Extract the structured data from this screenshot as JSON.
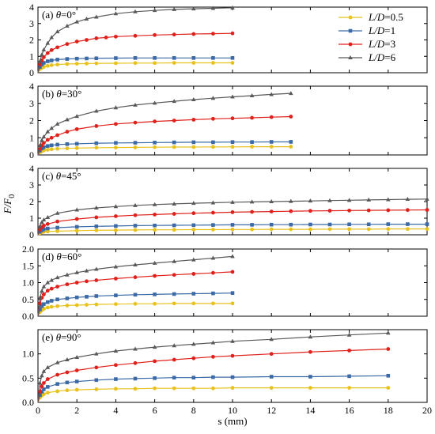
{
  "figure": {
    "ylabel": "F/F0",
    "ylabel_main": "F/F",
    "ylabel_sub": "0",
    "xlabel": "s (mm)"
  },
  "legend": {
    "placement": "top-right",
    "entries": [
      {
        "var": "L/D",
        "value": "=0.5",
        "color": "#e8c21c",
        "marker": "circle"
      },
      {
        "var": "L/D",
        "value": "=1",
        "color": "#3b6aa6",
        "marker": "square"
      },
      {
        "var": "L/D",
        "value": "=3",
        "color": "#e0201b",
        "marker": "circle"
      },
      {
        "var": "L/D",
        "value": "=6",
        "color": "#595959",
        "marker": "triangle"
      }
    ]
  },
  "chart_data": [
    {
      "type": "line",
      "panel_label": "(a)",
      "theta_symbol": "θ",
      "theta_value": "=0°",
      "xlim": [
        0,
        20
      ],
      "ylim": [
        0,
        4
      ],
      "yticks": [
        "0",
        "1",
        "2",
        "3",
        "4"
      ],
      "xticks": [],
      "series": [
        {
          "name": "L/D=0.5",
          "color": "#e8c21c",
          "marker": "circle",
          "x": [
            0,
            0.1,
            0.2,
            0.3,
            0.5,
            0.7,
            1,
            1.5,
            2,
            2.5,
            3,
            4,
            5,
            6,
            7,
            8,
            9,
            10
          ],
          "y": [
            0,
            0.22,
            0.3,
            0.36,
            0.42,
            0.46,
            0.5,
            0.53,
            0.55,
            0.56,
            0.57,
            0.58,
            0.59,
            0.59,
            0.6,
            0.6,
            0.6,
            0.6
          ]
        },
        {
          "name": "L/D=1",
          "color": "#3b6aa6",
          "marker": "square",
          "x": [
            0,
            0.1,
            0.2,
            0.3,
            0.5,
            0.7,
            1,
            1.5,
            2,
            2.5,
            3,
            4,
            5,
            6,
            7,
            8,
            9,
            10
          ],
          "y": [
            0,
            0.35,
            0.5,
            0.6,
            0.7,
            0.75,
            0.8,
            0.84,
            0.86,
            0.87,
            0.88,
            0.89,
            0.9,
            0.9,
            0.9,
            0.9,
            0.9,
            0.9
          ]
        },
        {
          "name": "L/D=3",
          "color": "#e0201b",
          "marker": "circle",
          "x": [
            0,
            0.1,
            0.2,
            0.3,
            0.5,
            0.7,
            1,
            1.5,
            2,
            2.5,
            3,
            3.5,
            4,
            5,
            6,
            7,
            8,
            9,
            10
          ],
          "y": [
            0,
            0.5,
            0.75,
            0.95,
            1.2,
            1.38,
            1.55,
            1.75,
            1.9,
            2.0,
            2.1,
            2.15,
            2.2,
            2.25,
            2.3,
            2.33,
            2.36,
            2.38,
            2.4
          ]
        },
        {
          "name": "L/D=6",
          "color": "#595959",
          "marker": "triangle",
          "x": [
            0,
            0.1,
            0.2,
            0.3,
            0.5,
            0.7,
            1,
            1.5,
            2,
            2.5,
            3,
            4,
            5,
            6,
            7,
            8,
            9,
            10
          ],
          "y": [
            0,
            0.7,
            1.1,
            1.4,
            1.8,
            2.15,
            2.5,
            2.85,
            3.1,
            3.28,
            3.4,
            3.6,
            3.72,
            3.8,
            3.86,
            3.9,
            3.93,
            3.96
          ]
        }
      ]
    },
    {
      "type": "line",
      "panel_label": "(b)",
      "theta_symbol": "θ",
      "theta_value": "=30°",
      "xlim": [
        0,
        20
      ],
      "ylim": [
        0,
        4
      ],
      "yticks": [
        "0",
        "1",
        "2",
        "3",
        "4"
      ],
      "xticks": [],
      "series": [
        {
          "name": "L/D=0.5",
          "color": "#e8c21c",
          "marker": "circle",
          "x": [
            0,
            0.1,
            0.2,
            0.3,
            0.5,
            0.7,
            1,
            1.5,
            2,
            3,
            4,
            5,
            6,
            7,
            8,
            9,
            10,
            11,
            12,
            13
          ],
          "y": [
            0,
            0.15,
            0.22,
            0.26,
            0.3,
            0.33,
            0.36,
            0.38,
            0.4,
            0.42,
            0.43,
            0.44,
            0.45,
            0.46,
            0.46,
            0.47,
            0.47,
            0.48,
            0.48,
            0.48
          ]
        },
        {
          "name": "L/D=1",
          "color": "#3b6aa6",
          "marker": "square",
          "x": [
            0,
            0.1,
            0.2,
            0.3,
            0.5,
            0.7,
            1,
            1.5,
            2,
            3,
            4,
            5,
            6,
            7,
            8,
            9,
            10,
            11,
            12,
            13
          ],
          "y": [
            0,
            0.25,
            0.38,
            0.45,
            0.52,
            0.56,
            0.6,
            0.63,
            0.65,
            0.68,
            0.7,
            0.71,
            0.72,
            0.73,
            0.74,
            0.74,
            0.75,
            0.75,
            0.76,
            0.76
          ]
        },
        {
          "name": "L/D=3",
          "color": "#e0201b",
          "marker": "circle",
          "x": [
            0,
            0.1,
            0.2,
            0.3,
            0.5,
            0.7,
            1,
            1.5,
            2,
            3,
            4,
            5,
            6,
            7,
            8,
            9,
            10,
            11,
            12,
            13
          ],
          "y": [
            0,
            0.35,
            0.55,
            0.7,
            0.88,
            1.0,
            1.15,
            1.35,
            1.5,
            1.68,
            1.8,
            1.88,
            1.95,
            2.0,
            2.05,
            2.1,
            2.13,
            2.16,
            2.2,
            2.23
          ]
        },
        {
          "name": "L/D=6",
          "color": "#595959",
          "marker": "triangle",
          "x": [
            0,
            0.1,
            0.2,
            0.3,
            0.5,
            0.7,
            1,
            1.5,
            2,
            3,
            4,
            5,
            6,
            7,
            8,
            9,
            10,
            11,
            12,
            13
          ],
          "y": [
            0,
            0.55,
            0.85,
            1.05,
            1.35,
            1.55,
            1.8,
            2.05,
            2.25,
            2.55,
            2.75,
            2.9,
            3.02,
            3.12,
            3.22,
            3.3,
            3.38,
            3.45,
            3.52,
            3.58
          ]
        }
      ]
    },
    {
      "type": "line",
      "panel_label": "(c)",
      "theta_symbol": "θ",
      "theta_value": "=45°",
      "xlim": [
        0,
        20
      ],
      "ylim": [
        0,
        4
      ],
      "yticks": [
        "0",
        "1",
        "2",
        "3",
        "4"
      ],
      "xticks": [],
      "series": [
        {
          "name": "L/D=0.5",
          "color": "#e8c21c",
          "marker": "circle",
          "x": [
            0,
            0.1,
            0.2,
            0.3,
            0.5,
            1,
            2,
            3,
            4,
            5,
            6,
            7,
            8,
            9,
            10,
            11,
            12,
            13,
            14,
            15,
            16,
            17,
            18,
            19,
            20
          ],
          "y": [
            0,
            0.1,
            0.15,
            0.18,
            0.2,
            0.22,
            0.25,
            0.27,
            0.28,
            0.29,
            0.3,
            0.3,
            0.31,
            0.31,
            0.32,
            0.32,
            0.33,
            0.33,
            0.33,
            0.34,
            0.34,
            0.34,
            0.35,
            0.35,
            0.35
          ]
        },
        {
          "name": "L/D=1",
          "color": "#3b6aa6",
          "marker": "square",
          "x": [
            0,
            0.1,
            0.2,
            0.3,
            0.5,
            1,
            2,
            3,
            4,
            5,
            6,
            7,
            8,
            9,
            10,
            11,
            12,
            13,
            14,
            15,
            16,
            17,
            18,
            19,
            20
          ],
          "y": [
            0,
            0.18,
            0.27,
            0.33,
            0.38,
            0.43,
            0.48,
            0.51,
            0.53,
            0.55,
            0.56,
            0.57,
            0.58,
            0.59,
            0.6,
            0.6,
            0.61,
            0.61,
            0.62,
            0.62,
            0.63,
            0.63,
            0.64,
            0.64,
            0.64
          ]
        },
        {
          "name": "L/D=3",
          "color": "#e0201b",
          "marker": "circle",
          "x": [
            0,
            0.1,
            0.2,
            0.3,
            0.5,
            1,
            2,
            3,
            4,
            5,
            6,
            7,
            8,
            9,
            10,
            11,
            12,
            13,
            14,
            15,
            16,
            17,
            18,
            19,
            20
          ],
          "y": [
            0,
            0.3,
            0.45,
            0.55,
            0.65,
            0.8,
            0.95,
            1.05,
            1.12,
            1.18,
            1.22,
            1.26,
            1.3,
            1.33,
            1.36,
            1.38,
            1.4,
            1.42,
            1.44,
            1.45,
            1.46,
            1.47,
            1.48,
            1.49,
            1.5
          ]
        },
        {
          "name": "L/D=6",
          "color": "#595959",
          "marker": "triangle",
          "x": [
            0,
            0.1,
            0.2,
            0.3,
            0.5,
            1,
            2,
            3,
            4,
            5,
            6,
            7,
            8,
            9,
            10,
            11,
            12,
            13,
            14,
            15,
            16,
            17,
            18,
            19,
            20
          ],
          "y": [
            0,
            0.5,
            0.75,
            0.9,
            1.05,
            1.3,
            1.5,
            1.62,
            1.7,
            1.77,
            1.82,
            1.86,
            1.9,
            1.93,
            1.96,
            1.98,
            2.0,
            2.02,
            2.04,
            2.06,
            2.08,
            2.1,
            2.12,
            2.14,
            2.15
          ]
        }
      ]
    },
    {
      "type": "line",
      "panel_label": "(d)",
      "theta_symbol": "θ",
      "theta_value": "=60°",
      "xlim": [
        0,
        20
      ],
      "ylim": [
        0,
        2.0
      ],
      "yticks": [
        "0.0",
        "0.5",
        "1.0",
        "1.5",
        "2.0"
      ],
      "xticks": [],
      "series": [
        {
          "name": "L/D=0.5",
          "color": "#e8c21c",
          "marker": "circle",
          "x": [
            0,
            0.1,
            0.2,
            0.3,
            0.5,
            0.7,
            1,
            1.5,
            2,
            2.5,
            3,
            4,
            5,
            6,
            7,
            8,
            9,
            10
          ],
          "y": [
            0,
            0.12,
            0.18,
            0.22,
            0.26,
            0.28,
            0.3,
            0.32,
            0.33,
            0.34,
            0.35,
            0.36,
            0.37,
            0.37,
            0.38,
            0.38,
            0.38,
            0.38
          ]
        },
        {
          "name": "L/D=1",
          "color": "#3b6aa6",
          "marker": "square",
          "x": [
            0,
            0.1,
            0.2,
            0.3,
            0.5,
            0.7,
            1,
            1.5,
            2,
            2.5,
            3,
            4,
            5,
            6,
            7,
            8,
            9,
            10
          ],
          "y": [
            0,
            0.2,
            0.3,
            0.36,
            0.42,
            0.46,
            0.5,
            0.53,
            0.56,
            0.58,
            0.6,
            0.62,
            0.64,
            0.65,
            0.66,
            0.67,
            0.68,
            0.69
          ]
        },
        {
          "name": "L/D=3",
          "color": "#e0201b",
          "marker": "circle",
          "x": [
            0,
            0.1,
            0.2,
            0.3,
            0.5,
            0.7,
            1,
            1.5,
            2,
            2.5,
            3,
            4,
            5,
            6,
            7,
            8,
            9,
            10
          ],
          "y": [
            0,
            0.38,
            0.55,
            0.65,
            0.76,
            0.82,
            0.88,
            0.95,
            1.0,
            1.04,
            1.07,
            1.12,
            1.16,
            1.2,
            1.23,
            1.26,
            1.29,
            1.32
          ]
        },
        {
          "name": "L/D=6",
          "color": "#595959",
          "marker": "triangle",
          "x": [
            0,
            0.1,
            0.2,
            0.3,
            0.5,
            0.7,
            1,
            1.5,
            2,
            2.5,
            3,
            4,
            5,
            6,
            7,
            8,
            9,
            10
          ],
          "y": [
            0,
            0.55,
            0.75,
            0.88,
            1.0,
            1.07,
            1.15,
            1.23,
            1.3,
            1.35,
            1.4,
            1.47,
            1.53,
            1.58,
            1.63,
            1.68,
            1.73,
            1.78
          ]
        }
      ]
    },
    {
      "type": "line",
      "panel_label": "(e)",
      "theta_symbol": "θ",
      "theta_value": "=90°",
      "xlim": [
        0,
        20
      ],
      "ylim": [
        0,
        1.5
      ],
      "yticks": [
        "0.0",
        "0.5",
        "1.0"
      ],
      "xticks": [
        "0",
        "2",
        "4",
        "6",
        "8",
        "10",
        "12",
        "14",
        "16",
        "18",
        "20"
      ],
      "series": [
        {
          "name": "L/D=0.5",
          "color": "#e8c21c",
          "marker": "circle",
          "x": [
            0,
            0.1,
            0.2,
            0.3,
            0.5,
            1,
            1.5,
            2,
            3,
            4,
            5,
            6,
            7,
            8,
            9,
            10,
            12,
            14,
            16,
            18
          ],
          "y": [
            0,
            0.1,
            0.14,
            0.17,
            0.2,
            0.23,
            0.25,
            0.26,
            0.27,
            0.28,
            0.28,
            0.29,
            0.29,
            0.29,
            0.29,
            0.3,
            0.3,
            0.3,
            0.3,
            0.3
          ]
        },
        {
          "name": "L/D=1",
          "color": "#3b6aa6",
          "marker": "square",
          "x": [
            0,
            0.1,
            0.2,
            0.3,
            0.5,
            1,
            1.5,
            2,
            3,
            4,
            5,
            6,
            7,
            8,
            9,
            10,
            12,
            14,
            16,
            18
          ],
          "y": [
            0,
            0.15,
            0.22,
            0.27,
            0.32,
            0.38,
            0.41,
            0.43,
            0.46,
            0.48,
            0.49,
            0.5,
            0.51,
            0.51,
            0.52,
            0.52,
            0.53,
            0.53,
            0.54,
            0.55
          ]
        },
        {
          "name": "L/D=3",
          "color": "#e0201b",
          "marker": "circle",
          "x": [
            0,
            0.1,
            0.2,
            0.3,
            0.5,
            1,
            1.5,
            2,
            3,
            4,
            5,
            6,
            7,
            8,
            9,
            10,
            12,
            14,
            16,
            18
          ],
          "y": [
            0,
            0.22,
            0.33,
            0.4,
            0.48,
            0.57,
            0.62,
            0.66,
            0.72,
            0.77,
            0.81,
            0.85,
            0.88,
            0.91,
            0.94,
            0.96,
            1.0,
            1.04,
            1.07,
            1.1
          ]
        },
        {
          "name": "L/D=6",
          "color": "#595959",
          "marker": "triangle",
          "x": [
            0,
            0.1,
            0.2,
            0.3,
            0.5,
            1,
            1.5,
            2,
            3,
            4,
            5,
            6,
            7,
            8,
            9,
            10,
            12,
            14,
            16,
            18
          ],
          "y": [
            0,
            0.4,
            0.55,
            0.64,
            0.72,
            0.82,
            0.88,
            0.93,
            1.0,
            1.06,
            1.1,
            1.14,
            1.17,
            1.2,
            1.23,
            1.26,
            1.3,
            1.35,
            1.39,
            1.43
          ]
        }
      ]
    }
  ]
}
